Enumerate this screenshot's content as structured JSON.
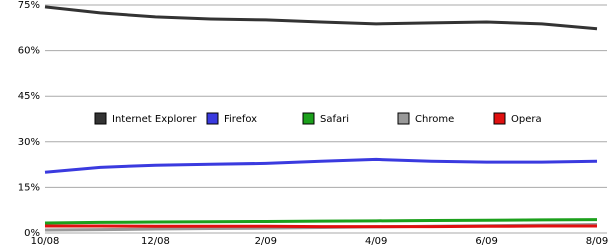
{
  "chart_data": {
    "type": "line",
    "categories": [
      "10/08",
      null,
      "12/08",
      null,
      "2/09",
      null,
      "4/09",
      null,
      "6/09",
      null,
      "8/09"
    ],
    "series": [
      {
        "name": "Internet Explorer",
        "color": "#333333",
        "values": [
          74.4,
          72.4,
          71.1,
          70.4,
          70.1,
          69.4,
          68.8,
          69.1,
          69.4,
          68.8,
          67.2
        ]
      },
      {
        "name": "Firefox",
        "color": "#3a3adf",
        "values": [
          20.0,
          21.6,
          22.3,
          22.6,
          22.9,
          23.6,
          24.2,
          23.6,
          23.3,
          23.3,
          23.6
        ]
      },
      {
        "name": "Safari",
        "color": "#1ca01c",
        "values": [
          3.3,
          3.5,
          3.6,
          3.7,
          3.8,
          3.9,
          4.0,
          4.1,
          4.2,
          4.3,
          4.4
        ]
      },
      {
        "name": "Chrome",
        "color": "#999999",
        "values": [
          1.0,
          1.1,
          1.3,
          1.5,
          1.6,
          1.8,
          2.0,
          2.2,
          2.4,
          2.6,
          2.8
        ]
      },
      {
        "name": "Opera",
        "color": "#e01010",
        "values": [
          2.3,
          2.3,
          2.2,
          2.2,
          2.2,
          2.1,
          2.1,
          2.1,
          2.2,
          2.3,
          2.3
        ]
      }
    ],
    "ylim": [
      0,
      75
    ],
    "yticks": [
      {
        "value": 0,
        "label": "0%"
      },
      {
        "value": 15,
        "label": "15%"
      },
      {
        "value": 30,
        "label": "30%"
      },
      {
        "value": 45,
        "label": "45%"
      },
      {
        "value": 60,
        "label": "60%"
      },
      {
        "value": 75,
        "label": "75%"
      }
    ],
    "grid": true
  }
}
